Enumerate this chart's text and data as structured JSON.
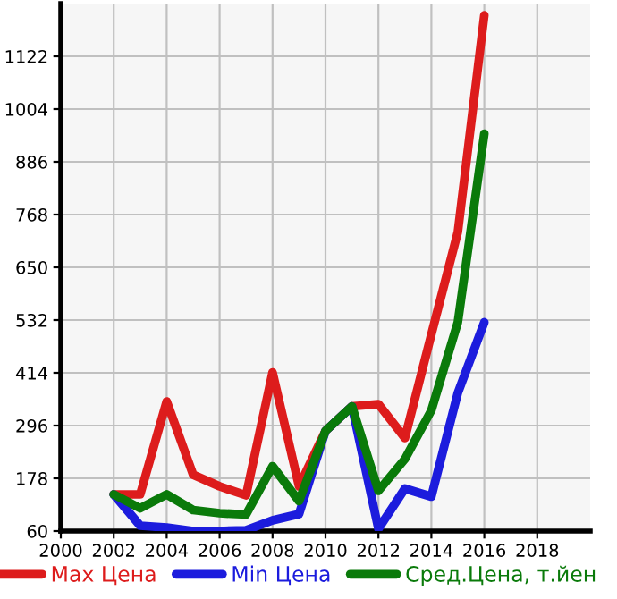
{
  "chart_data": {
    "type": "line",
    "x": [
      2002,
      2003,
      2004,
      2005,
      2006,
      2007,
      2008,
      2009,
      2010,
      2011,
      2012,
      2013,
      2014,
      2015,
      2016
    ],
    "series": [
      {
        "name": "Max Цена",
        "color": "#dd1c1c",
        "values": [
          142,
          142,
          350,
          186,
          160,
          140,
          415,
          160,
          284,
          339,
          344,
          268,
          500,
          729,
          1214
        ]
      },
      {
        "name": "Min Цена",
        "color": "#1c1cdd",
        "values": [
          142,
          72,
          68,
          60,
          60,
          62,
          84,
          98,
          284,
          339,
          65,
          155,
          137,
          369,
          527
        ]
      },
      {
        "name": "Сред.Цена, т.йен",
        "color": "#0a7a0a",
        "values": [
          142,
          111,
          142,
          107,
          100,
          97,
          205,
          127,
          284,
          339,
          150,
          221,
          330,
          527,
          949
        ]
      }
    ],
    "xlim": [
      2000,
      2020
    ],
    "xticks": [
      2000,
      2002,
      2004,
      2006,
      2008,
      2010,
      2012,
      2014,
      2016,
      2018
    ],
    "ylim": [
      60,
      1240
    ],
    "yticks": [
      60,
      178,
      296,
      414,
      532,
      650,
      768,
      886,
      1004,
      1122
    ],
    "grid": true,
    "legend": "bottom",
    "marker": "none",
    "line_style": "solid"
  }
}
